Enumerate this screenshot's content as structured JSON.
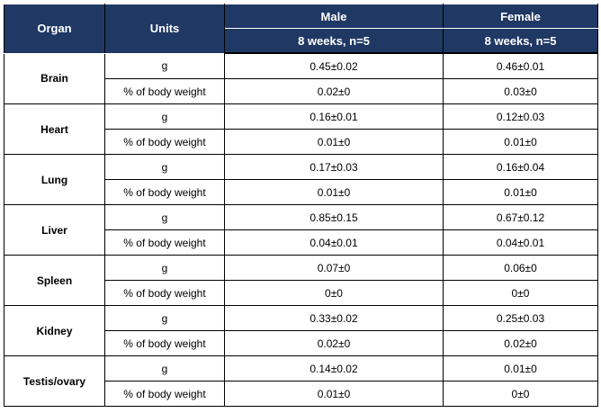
{
  "table": {
    "header": {
      "organ": "Organ",
      "units": "Units",
      "groups": [
        {
          "name": "Male",
          "sub": "8 weeks, n=5"
        },
        {
          "name": "Female",
          "sub": "8 weeks, n=5"
        }
      ]
    },
    "organs": [
      {
        "name": "Brain",
        "rows": [
          {
            "unit": "g",
            "values": [
              "0.45±0.02",
              "0.46±0.01"
            ]
          },
          {
            "unit": "% of body weight",
            "values": [
              "0.02±0",
              "0.03±0"
            ]
          }
        ]
      },
      {
        "name": "Heart",
        "rows": [
          {
            "unit": "g",
            "values": [
              "0.16±0.01",
              "0.12±0.03"
            ]
          },
          {
            "unit": "% of body weight",
            "values": [
              "0.01±0",
              "0.01±0"
            ]
          }
        ]
      },
      {
        "name": "Lung",
        "rows": [
          {
            "unit": "g",
            "values": [
              "0.17±0.03",
              "0.16±0.04"
            ]
          },
          {
            "unit": "% of body weight",
            "values": [
              "0.01±0",
              "0.01±0"
            ]
          }
        ]
      },
      {
        "name": "Liver",
        "rows": [
          {
            "unit": "g",
            "values": [
              "0.85±0.15",
              "0.67±0.12"
            ]
          },
          {
            "unit": "% of body weight",
            "values": [
              "0.04±0.01",
              "0.04±0.01"
            ]
          }
        ]
      },
      {
        "name": "Spleen",
        "rows": [
          {
            "unit": "g",
            "values": [
              "0.07±0",
              "0.06±0"
            ]
          },
          {
            "unit": "% of body weight",
            "values": [
              "0±0",
              "0±0"
            ]
          }
        ]
      },
      {
        "name": "Kidney",
        "rows": [
          {
            "unit": "g",
            "values": [
              "0.33±0.02",
              "0.25±0.03"
            ]
          },
          {
            "unit": "% of body weight",
            "values": [
              "0.02±0",
              "0.02±0"
            ]
          }
        ]
      },
      {
        "name": "Testis/ovary",
        "rows": [
          {
            "unit": "g",
            "values": [
              "0.14±0.02",
              "0.01±0"
            ]
          },
          {
            "unit": "% of body weight",
            "values": [
              "0.01±0",
              "0±0"
            ]
          }
        ]
      }
    ]
  }
}
